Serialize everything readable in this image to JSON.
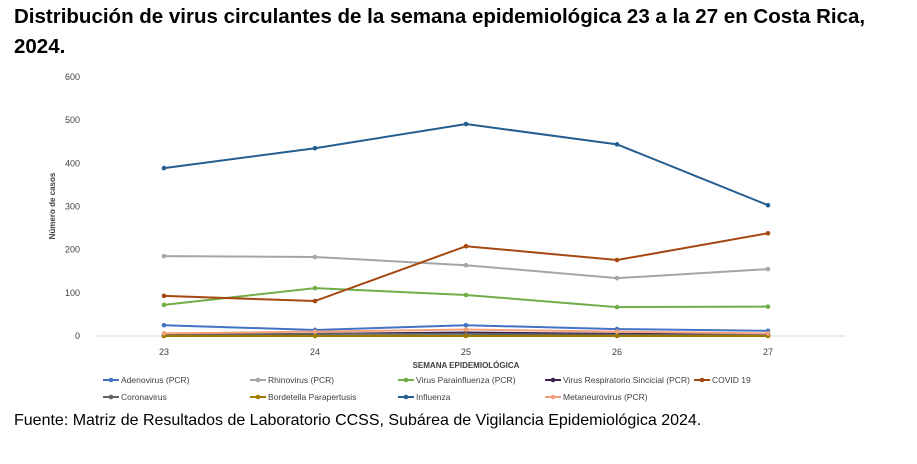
{
  "title": "Distribución de virus circulantes de la semana epidemiológica 23 a la 27 en Costa Rica, 2024.",
  "source": "Fuente: Matriz de Resultados de Laboratorio CCSS, Subárea de Vigilancia Epidemiológica 2024.",
  "chart_data": {
    "type": "line",
    "title": "",
    "xlabel": "SEMANA EPIDEMIOLÓGICA",
    "ylabel": "Número de casos",
    "ylim": [
      0,
      600
    ],
    "yticks": [
      0,
      100,
      200,
      300,
      400,
      500,
      600
    ],
    "categories": [
      "23",
      "24",
      "25",
      "26",
      "27"
    ],
    "grid": false,
    "legend": "bottom",
    "series": [
      {
        "name": "Adenovirus (PCR)",
        "color": "#4472c4",
        "values": [
          25,
          14,
          25,
          16,
          12
        ]
      },
      {
        "name": "Rhinovirus (PCR)",
        "color": "#a5a5a5",
        "values": [
          185,
          183,
          164,
          134,
          155
        ]
      },
      {
        "name": "Virus Parainfluenza (PCR)",
        "color": "#70ad47",
        "values": [
          72,
          111,
          95,
          67,
          68
        ]
      },
      {
        "name": "Virus Respiratorio Sincicial (PCR)",
        "color": "#3a1f4d",
        "values": [
          2,
          5,
          8,
          5,
          4
        ]
      },
      {
        "name": "COVID 19",
        "color": "#a5470f",
        "values": [
          93,
          81,
          208,
          176,
          238
        ]
      },
      {
        "name": "Coronavirus",
        "color": "#636363",
        "values": [
          3,
          5,
          5,
          3,
          3
        ]
      },
      {
        "name": "Bordetella Parapertusis",
        "color": "#9e7a00",
        "values": [
          0,
          0,
          0,
          0,
          0
        ]
      },
      {
        "name": "Influenza",
        "color": "#255e91",
        "values": [
          389,
          435,
          491,
          444,
          303
        ]
      },
      {
        "name": "Metaneurovirus (PCR)",
        "color": "#f4a07a",
        "values": [
          6,
          10,
          15,
          10,
          6
        ]
      }
    ]
  }
}
